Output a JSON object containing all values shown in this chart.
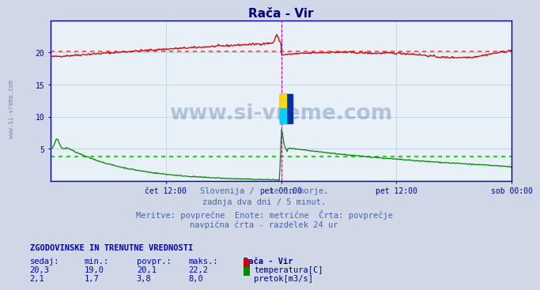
{
  "title": "Rača - Vir",
  "bg_color": "#d0d8e8",
  "plot_bg_color": "#e8f0f8",
  "grid_color": "#b8c8d8",
  "axis_color": "#0000aa",
  "title_color": "#000088",
  "label_color": "#0000cc",
  "temp_color": "#cc0000",
  "flow_color": "#008800",
  "temp_ref_color": "#ee4444",
  "flow_ref_color": "#00cc00",
  "x_ticks_labels": [
    "čet 12:00",
    "pet 00:00",
    "pet 12:00",
    "sob 00:00"
  ],
  "x_ticks_pos": [
    0.25,
    0.5,
    0.75,
    1.0
  ],
  "vline_pos": [
    0.5,
    1.0
  ],
  "temp_mean": 20.1,
  "flow_mean": 3.8,
  "temp_max": 22.2,
  "flow_max": 8.0,
  "temp_min": 19.0,
  "flow_min": 1.7,
  "temp_current": 20.3,
  "flow_current": 2.1,
  "ylim": [
    0,
    25
  ],
  "yticks": [
    5,
    10,
    15,
    20
  ],
  "watermark": "www.si-vreme.com",
  "watermark_color": "#1a3a8a",
  "watermark_alpha": 0.25,
  "subtitle_lines": [
    "Slovenija / reke in morje.",
    "zadnja dva dni / 5 minut.",
    "Meritve: povprečne  Enote: metrične  Črta: povprečje",
    "navpična črta - razdelek 24 ur"
  ],
  "subtitle_color": "#4466aa",
  "subtitle_fontsize": 7.5,
  "table_header": "ZGODOVINSKE IN TRENUTNE VREDNOSTI",
  "table_header_color": "#0000cc",
  "table_col_headers": [
    "sedaj:",
    "min.:",
    "povpr.:",
    "maks.:"
  ],
  "table_station": "Rača - Vir",
  "table_temp_label": "temperatura[C]",
  "table_flow_label": "pretok[m3/s]",
  "left_label": "www.si-vreme.com",
  "left_label_color": "#7090b0"
}
